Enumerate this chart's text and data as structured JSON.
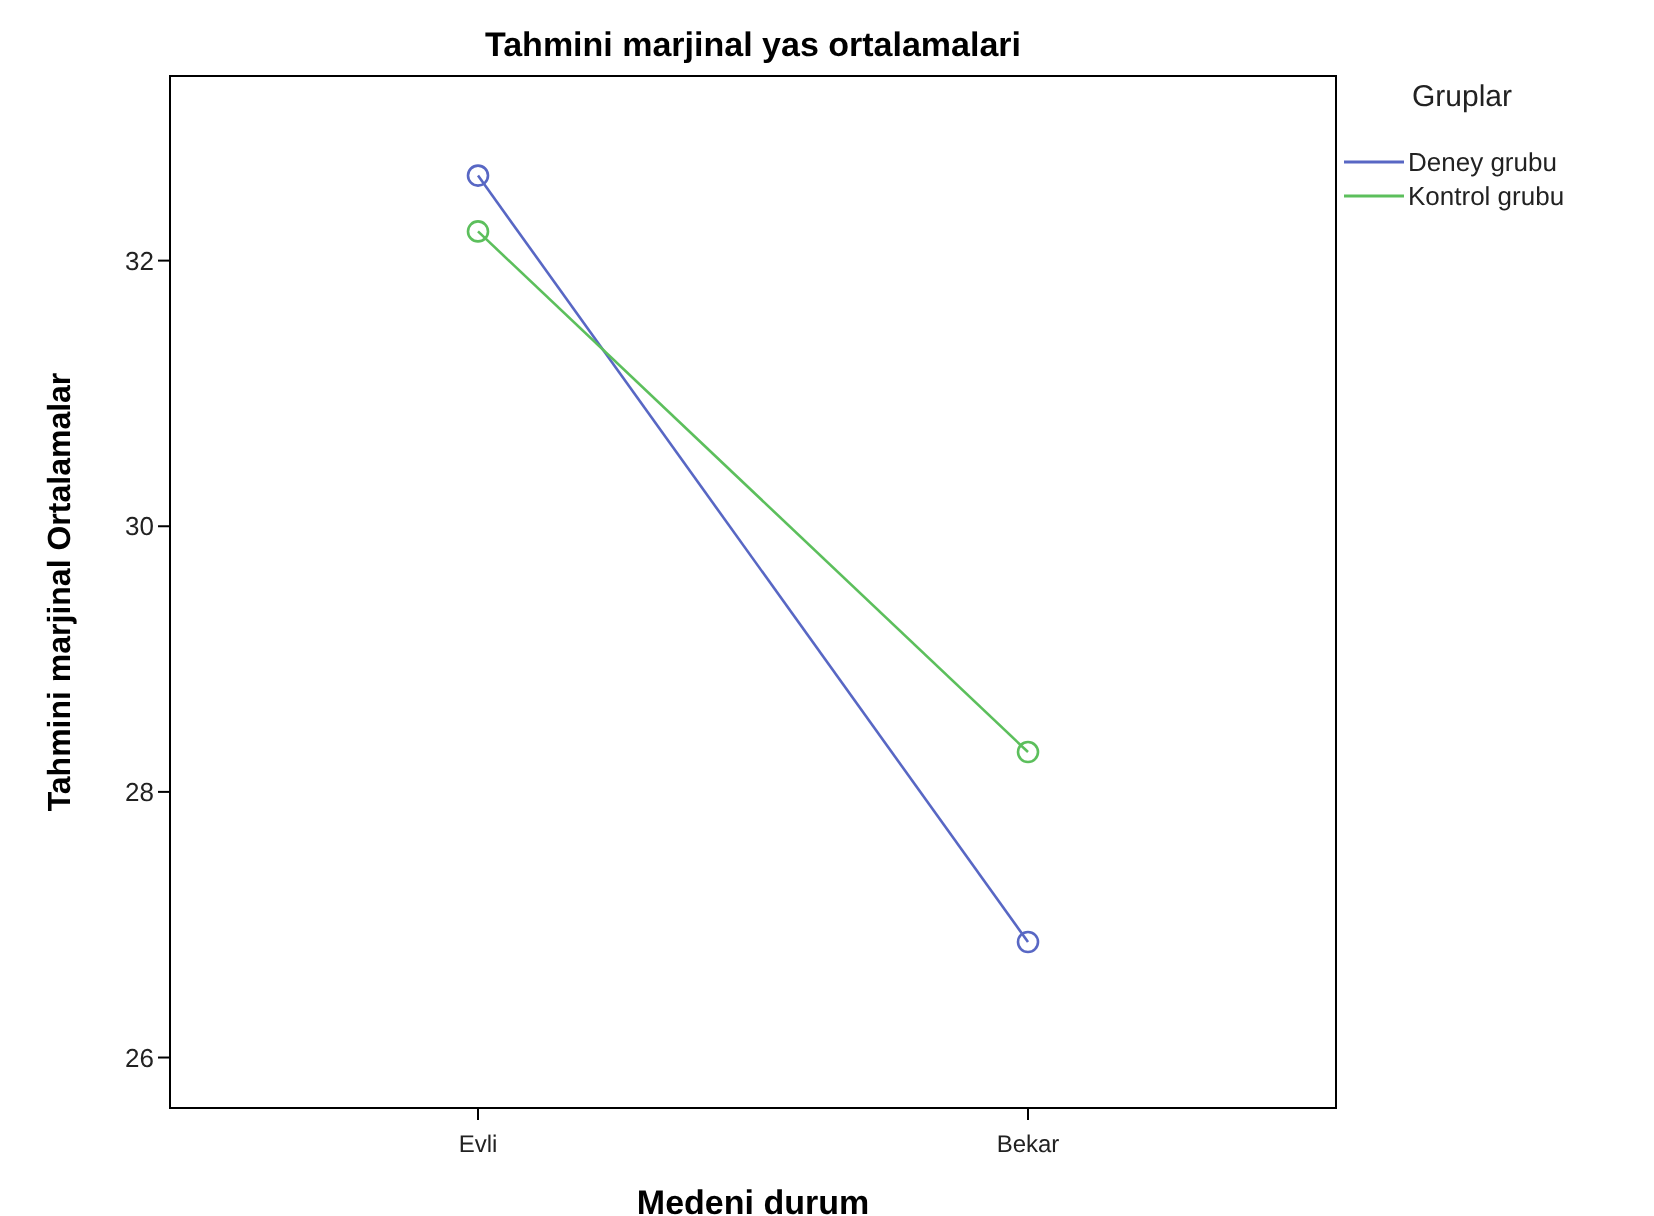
{
  "chart_data": {
    "type": "line",
    "title": "Tahmini marjinal yas ortalamalari",
    "xlabel": "Medeni durum",
    "ylabel": "Tahmini marjinal Ortalamalar",
    "legend_title": "Gruplar",
    "categories": [
      "Evli",
      "Bekar"
    ],
    "series": [
      {
        "name": "Deney grubu",
        "color": "#5867c4",
        "values": [
          32.64,
          26.87
        ]
      },
      {
        "name": "Kontrol grubu",
        "color": "#5cbf5c",
        "values": [
          32.22,
          28.3
        ]
      }
    ],
    "ylim": [
      25.62,
      33.39
    ],
    "yticks": [
      26,
      28,
      30,
      32
    ],
    "grid": false,
    "legend": "top right",
    "marker": "circle",
    "line_style": "solid"
  }
}
